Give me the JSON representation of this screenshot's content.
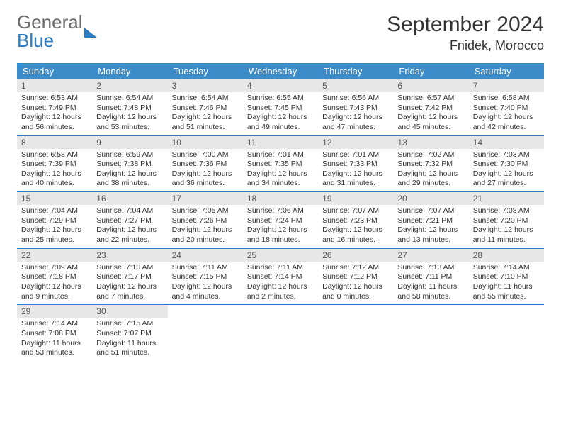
{
  "brand": {
    "line1": "General",
    "line2": "Blue"
  },
  "title": {
    "month": "September 2024",
    "location": "Fnidek, Morocco"
  },
  "colors": {
    "header_bg": "#3b8bc8",
    "header_text": "#ffffff",
    "daynum_bg": "#e7e7e7",
    "daynum_text": "#555555",
    "row_border": "#2f7bbf",
    "body_text": "#333333",
    "logo_gray": "#6a6a6a",
    "logo_blue": "#2f7bbf"
  },
  "dayNames": [
    "Sunday",
    "Monday",
    "Tuesday",
    "Wednesday",
    "Thursday",
    "Friday",
    "Saturday"
  ],
  "days": [
    {
      "n": 1,
      "sr": "6:53 AM",
      "ss": "7:49 PM",
      "dl": "12 hours and 56 minutes."
    },
    {
      "n": 2,
      "sr": "6:54 AM",
      "ss": "7:48 PM",
      "dl": "12 hours and 53 minutes."
    },
    {
      "n": 3,
      "sr": "6:54 AM",
      "ss": "7:46 PM",
      "dl": "12 hours and 51 minutes."
    },
    {
      "n": 4,
      "sr": "6:55 AM",
      "ss": "7:45 PM",
      "dl": "12 hours and 49 minutes."
    },
    {
      "n": 5,
      "sr": "6:56 AM",
      "ss": "7:43 PM",
      "dl": "12 hours and 47 minutes."
    },
    {
      "n": 6,
      "sr": "6:57 AM",
      "ss": "7:42 PM",
      "dl": "12 hours and 45 minutes."
    },
    {
      "n": 7,
      "sr": "6:58 AM",
      "ss": "7:40 PM",
      "dl": "12 hours and 42 minutes."
    },
    {
      "n": 8,
      "sr": "6:58 AM",
      "ss": "7:39 PM",
      "dl": "12 hours and 40 minutes."
    },
    {
      "n": 9,
      "sr": "6:59 AM",
      "ss": "7:38 PM",
      "dl": "12 hours and 38 minutes."
    },
    {
      "n": 10,
      "sr": "7:00 AM",
      "ss": "7:36 PM",
      "dl": "12 hours and 36 minutes."
    },
    {
      "n": 11,
      "sr": "7:01 AM",
      "ss": "7:35 PM",
      "dl": "12 hours and 34 minutes."
    },
    {
      "n": 12,
      "sr": "7:01 AM",
      "ss": "7:33 PM",
      "dl": "12 hours and 31 minutes."
    },
    {
      "n": 13,
      "sr": "7:02 AM",
      "ss": "7:32 PM",
      "dl": "12 hours and 29 minutes."
    },
    {
      "n": 14,
      "sr": "7:03 AM",
      "ss": "7:30 PM",
      "dl": "12 hours and 27 minutes."
    },
    {
      "n": 15,
      "sr": "7:04 AM",
      "ss": "7:29 PM",
      "dl": "12 hours and 25 minutes."
    },
    {
      "n": 16,
      "sr": "7:04 AM",
      "ss": "7:27 PM",
      "dl": "12 hours and 22 minutes."
    },
    {
      "n": 17,
      "sr": "7:05 AM",
      "ss": "7:26 PM",
      "dl": "12 hours and 20 minutes."
    },
    {
      "n": 18,
      "sr": "7:06 AM",
      "ss": "7:24 PM",
      "dl": "12 hours and 18 minutes."
    },
    {
      "n": 19,
      "sr": "7:07 AM",
      "ss": "7:23 PM",
      "dl": "12 hours and 16 minutes."
    },
    {
      "n": 20,
      "sr": "7:07 AM",
      "ss": "7:21 PM",
      "dl": "12 hours and 13 minutes."
    },
    {
      "n": 21,
      "sr": "7:08 AM",
      "ss": "7:20 PM",
      "dl": "12 hours and 11 minutes."
    },
    {
      "n": 22,
      "sr": "7:09 AM",
      "ss": "7:18 PM",
      "dl": "12 hours and 9 minutes."
    },
    {
      "n": 23,
      "sr": "7:10 AM",
      "ss": "7:17 PM",
      "dl": "12 hours and 7 minutes."
    },
    {
      "n": 24,
      "sr": "7:11 AM",
      "ss": "7:15 PM",
      "dl": "12 hours and 4 minutes."
    },
    {
      "n": 25,
      "sr": "7:11 AM",
      "ss": "7:14 PM",
      "dl": "12 hours and 2 minutes."
    },
    {
      "n": 26,
      "sr": "7:12 AM",
      "ss": "7:12 PM",
      "dl": "12 hours and 0 minutes."
    },
    {
      "n": 27,
      "sr": "7:13 AM",
      "ss": "7:11 PM",
      "dl": "11 hours and 58 minutes."
    },
    {
      "n": 28,
      "sr": "7:14 AM",
      "ss": "7:10 PM",
      "dl": "11 hours and 55 minutes."
    },
    {
      "n": 29,
      "sr": "7:14 AM",
      "ss": "7:08 PM",
      "dl": "11 hours and 53 minutes."
    },
    {
      "n": 30,
      "sr": "7:15 AM",
      "ss": "7:07 PM",
      "dl": "11 hours and 51 minutes."
    }
  ],
  "labels": {
    "sunrise": "Sunrise:",
    "sunset": "Sunset:",
    "daylight": "Daylight:"
  },
  "layout": {
    "columns": 7,
    "start_weekday": 0,
    "total_cells": 35
  }
}
